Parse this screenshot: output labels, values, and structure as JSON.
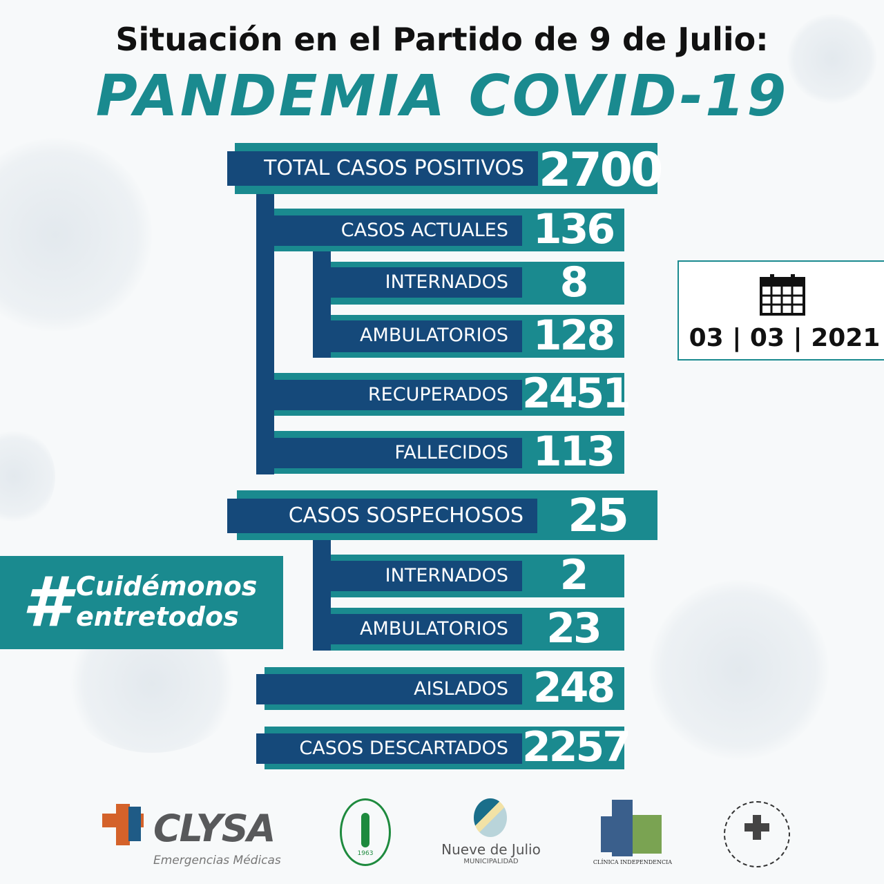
{
  "header": {
    "line1": "Situación en el Partido de 9 de Julio:",
    "line2": "PANDEMIA COVID-19"
  },
  "stats": {
    "total": {
      "label": "TOTAL CASOS POSITIVOS",
      "value": "2700"
    },
    "actuales": {
      "label": "CASOS ACTUALES",
      "value": "136"
    },
    "internados": {
      "label": "INTERNADOS",
      "value": "8"
    },
    "ambulatorios": {
      "label": "AMBULATORIOS",
      "value": "128"
    },
    "recuperados": {
      "label": "RECUPERADOS",
      "value": "2451"
    },
    "fallecidos": {
      "label": "FALLECIDOS",
      "value": "113"
    },
    "sospechosos": {
      "label": "CASOS SOSPECHOSOS",
      "value": "25"
    },
    "sosp_internados": {
      "label": "INTERNADOS",
      "value": "2"
    },
    "sosp_ambulatorios": {
      "label": "AMBULATORIOS",
      "value": "23"
    },
    "aislados": {
      "label": "AISLADOS",
      "value": "248"
    },
    "descartados": {
      "label": "CASOS DESCARTADOS",
      "value": "2257"
    }
  },
  "date": {
    "icon": "calendar-icon",
    "day": "03",
    "month": "03",
    "year": "2021"
  },
  "hashtag": {
    "symbol": "#",
    "line1": "Cuidémonos",
    "line2": "entretodos"
  },
  "logos": {
    "clysa": {
      "name": "CLYSA",
      "sub": "Emergencias Médicas"
    },
    "circulo": {
      "year": "1963"
    },
    "municipal": {
      "name": "Nueve de Julio",
      "sub": "MUNICIPALIDAD"
    },
    "clinica": {
      "name": "CLÍNICA INDEPENDENCIA"
    }
  },
  "colors": {
    "teal": "#1a8a8f",
    "navy": "#15497a"
  }
}
